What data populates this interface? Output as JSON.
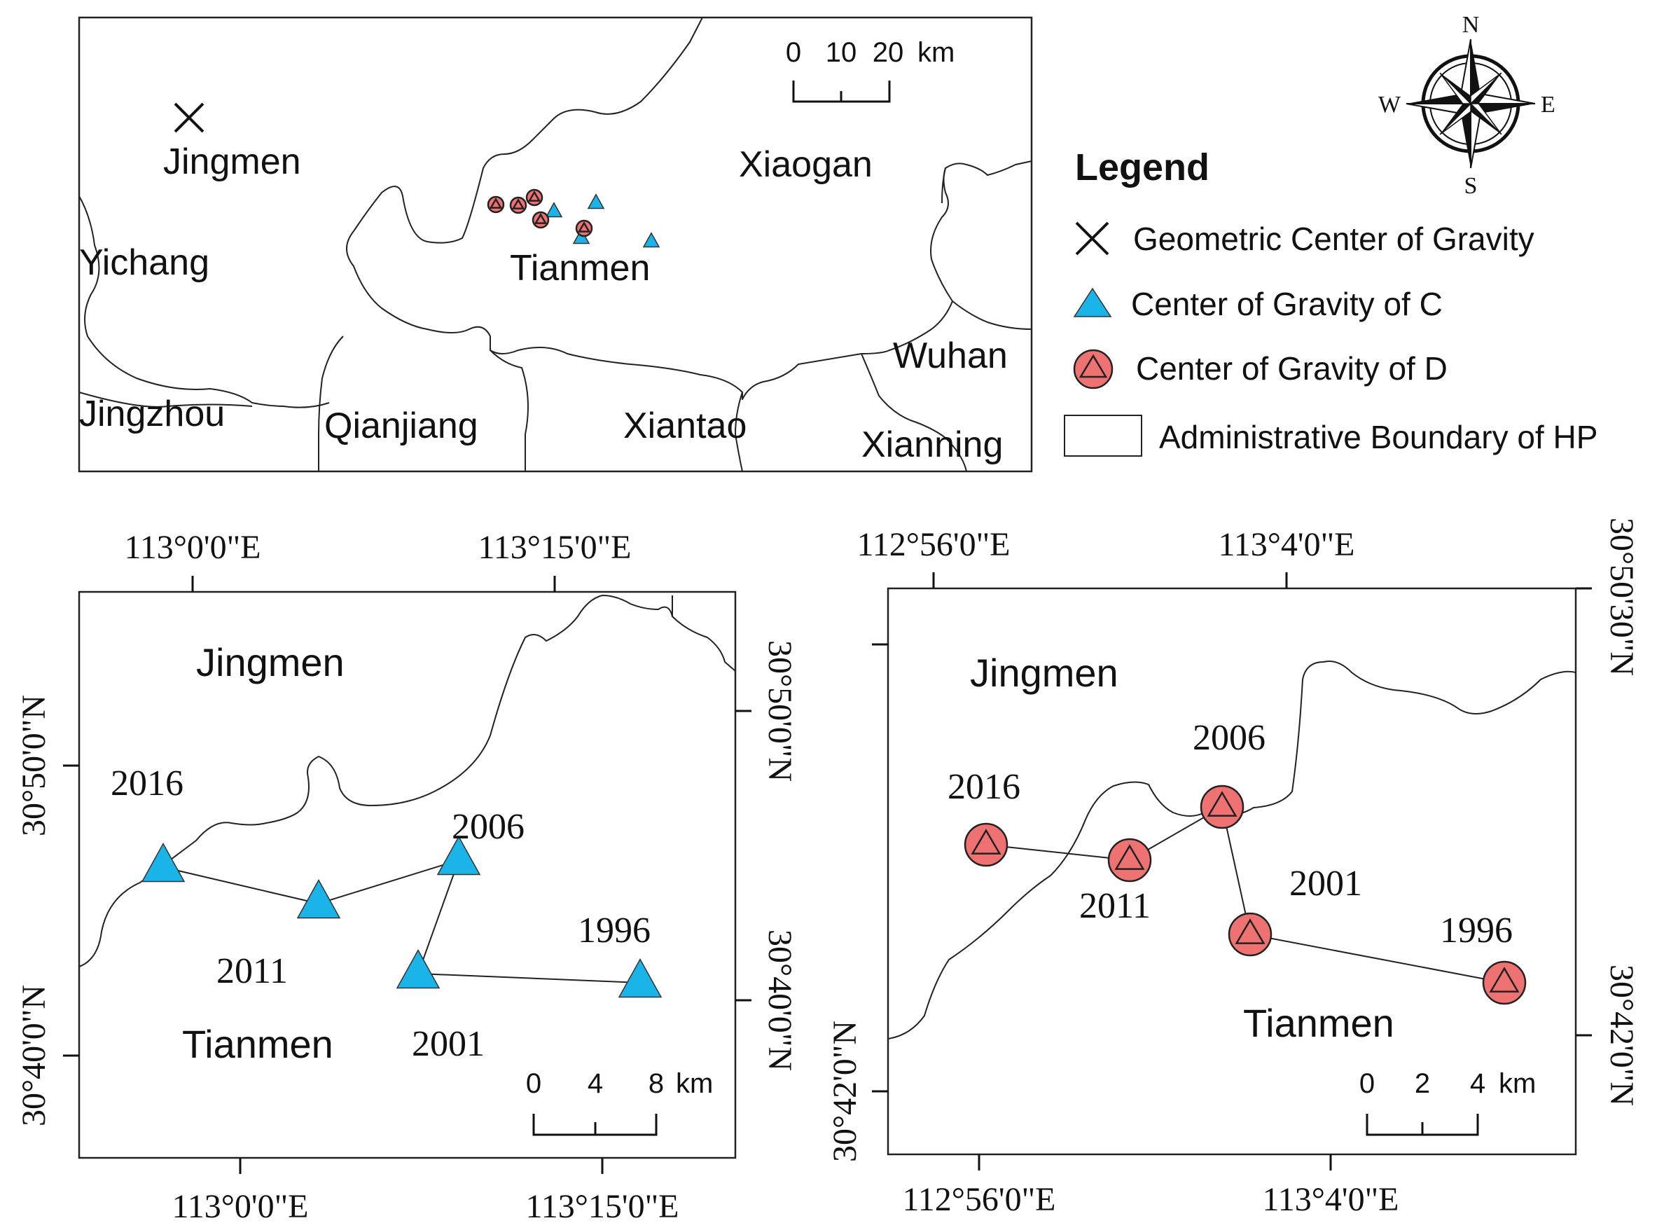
{
  "colors": {
    "c_marker": "#1AB4E8",
    "d_marker": "#EE7272",
    "outline": "#222222"
  },
  "overview": {
    "cities": {
      "jingmen": "Jingmen",
      "yichang": "Yichang",
      "jingzhou": "Jingzhou",
      "qianjiang": "Qianjiang",
      "xiantao": "Xiantao",
      "tianmen": "Tianmen",
      "xiaogan": "Xiaogan",
      "wuhan": "Wuhan",
      "xianning": "Xianning"
    },
    "scale": {
      "t0": "0",
      "t1": "10",
      "t2": "20",
      "unit": "km"
    }
  },
  "compass": {
    "n": "N",
    "s": "S",
    "e": "E",
    "w": "W"
  },
  "legend": {
    "title": "Legend",
    "items": [
      {
        "label": "Geometric Center of Gravity",
        "icon": "x-cross-icon"
      },
      {
        "label": "Center of Gravity of C",
        "icon": "blue-triangle-icon"
      },
      {
        "label": "Center of Gravity of D",
        "icon": "red-circle-triangle-icon"
      },
      {
        "label": "Administrative Boundary of HP",
        "icon": "white-rectangle-icon"
      }
    ]
  },
  "panel_c": {
    "top_ticks": [
      "113°0'0\"E",
      "113°15'0\"E"
    ],
    "bottom_ticks": [
      "113°0'0\"E",
      "113°15'0\"E"
    ],
    "left_ticks": [
      "30°50'0\"N",
      "30°40'0\"N"
    ],
    "right_ticks": [
      "30°50'0\"N",
      "30°40'0\"N"
    ],
    "region_top": "Jingmen",
    "region_bottom": "Tianmen",
    "years": [
      "2016",
      "2011",
      "2006",
      "2001",
      "1996"
    ],
    "scale": {
      "t0": "0",
      "t1": "4",
      "t2": "8",
      "unit": "km"
    }
  },
  "panel_d": {
    "top_ticks": [
      "112°56'0\"E",
      "113°4'0\"E"
    ],
    "bottom_ticks": [
      "112°56'0\"E",
      "113°4'0\"E"
    ],
    "left_ticks": [
      "30°42'0\"N"
    ],
    "right_ticks": [
      "30°50'30\"N",
      "30°42'0\"N"
    ],
    "region_top": "Jingmen",
    "region_bottom": "Tianmen",
    "years": [
      "2016",
      "2011",
      "2006",
      "2001",
      "1996"
    ],
    "scale": {
      "t0": "0",
      "t1": "2",
      "t2": "4",
      "unit": "km"
    }
  }
}
